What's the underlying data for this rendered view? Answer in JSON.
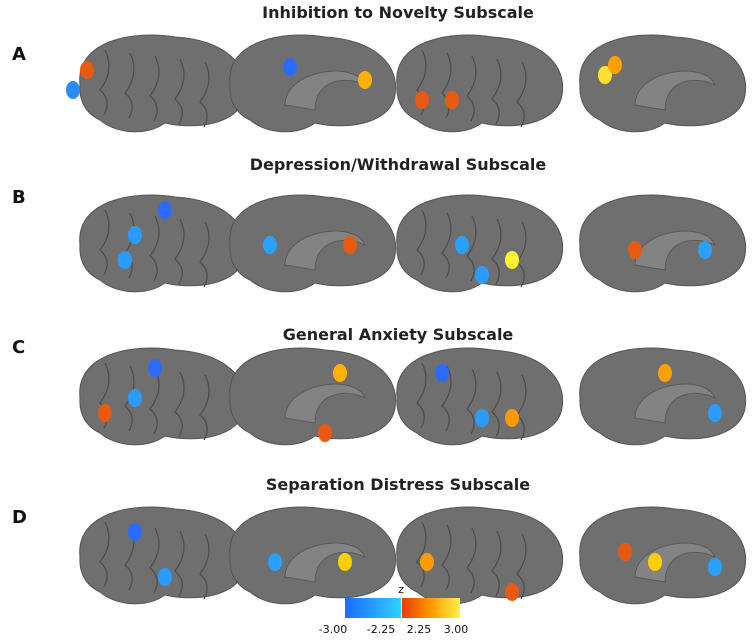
{
  "panels": [
    {
      "label": "A",
      "title": "Inhibition to Novelty Subscale"
    },
    {
      "label": "B",
      "title": "Depression/Withdrawal Subscale"
    },
    {
      "label": "C",
      "title": "General Anxiety Subscale"
    },
    {
      "label": "D",
      "title": "Separation Distress Subscale"
    }
  ],
  "colorbar": {
    "title": "z",
    "labels": [
      "-3.00",
      "-2.25",
      "2.25",
      "3.00"
    ]
  }
}
